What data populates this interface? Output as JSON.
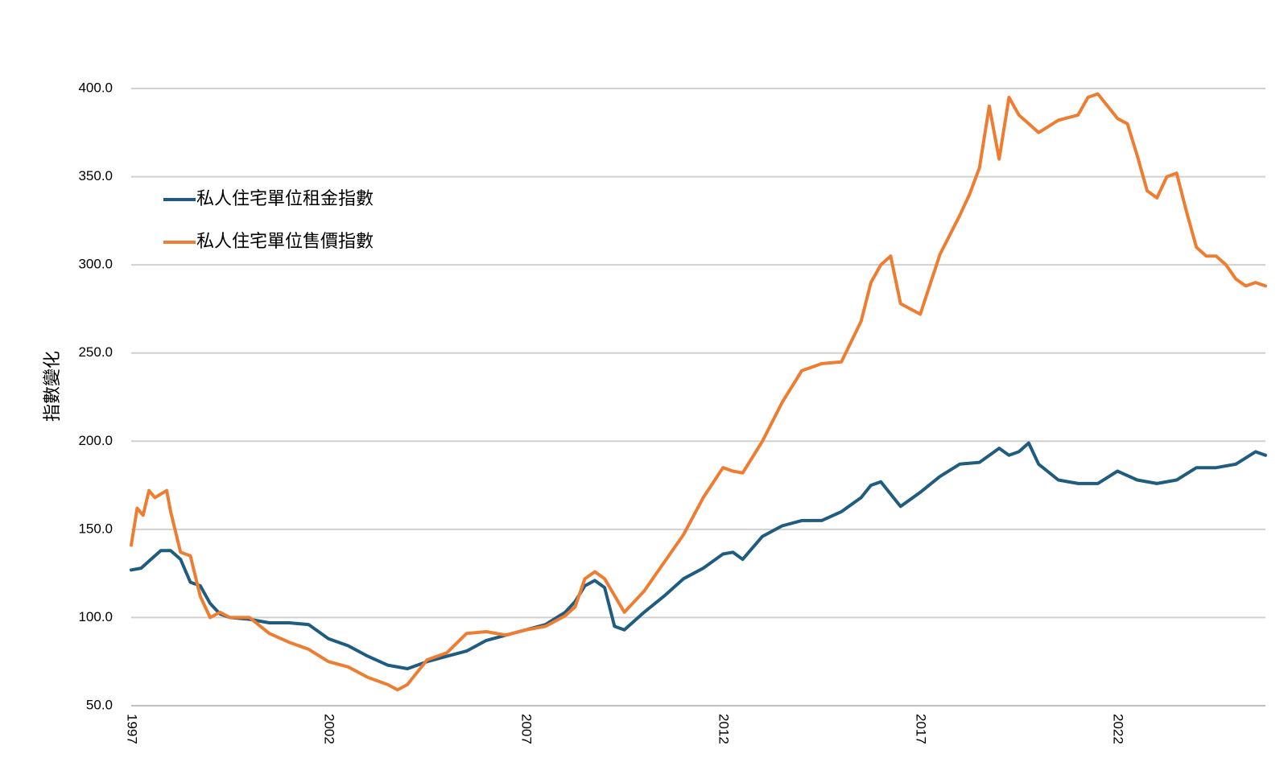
{
  "chart_data": {
    "type": "line",
    "title": "",
    "xlabel": "",
    "ylabel": "指數變化",
    "ylim": [
      50,
      400
    ],
    "yticks": [
      "400.0",
      "350.0",
      "300.0",
      "250.0",
      "200.0",
      "150.0",
      "100.0",
      "50.0"
    ],
    "xlim": [
      1997,
      2025.75
    ],
    "xticks": [
      "1997",
      "2002",
      "2007",
      "2012",
      "2017",
      "2022"
    ],
    "grid": true,
    "legend_position": "top-left",
    "series": [
      {
        "name": "私人住宅單位租金指數",
        "color": "#1f5c7f",
        "x": [
          1997.0,
          1997.25,
          1997.5,
          1997.75,
          1998.0,
          1998.25,
          1998.5,
          1998.75,
          1999.0,
          1999.25,
          1999.5,
          2000.0,
          2000.5,
          2001.0,
          2001.5,
          2002.0,
          2002.5,
          2003.0,
          2003.5,
          2004.0,
          2004.5,
          2005.0,
          2005.5,
          2006.0,
          2006.5,
          2007.0,
          2007.5,
          2008.0,
          2008.25,
          2008.5,
          2008.75,
          2009.0,
          2009.25,
          2009.5,
          2010.0,
          2010.5,
          2011.0,
          2011.5,
          2012.0,
          2012.25,
          2012.5,
          2013.0,
          2013.5,
          2014.0,
          2014.5,
          2015.0,
          2015.5,
          2015.75,
          2016.0,
          2016.25,
          2016.5,
          2017.0,
          2017.5,
          2018.0,
          2018.5,
          2019.0,
          2019.25,
          2019.5,
          2019.75,
          2020.0,
          2020.5,
          2021.0,
          2021.5,
          2022.0,
          2022.5,
          2023.0,
          2023.5,
          2024.0,
          2024.5,
          2025.0,
          2025.5,
          2025.75
        ],
        "values": [
          127,
          128,
          133,
          138,
          138,
          133,
          120,
          118,
          108,
          102,
          100,
          99,
          97,
          97,
          96,
          88,
          84,
          78,
          73,
          71,
          75,
          78,
          81,
          87,
          90,
          93,
          96,
          103,
          109,
          118,
          121,
          117,
          95,
          93,
          103,
          112,
          122,
          128,
          136,
          137,
          133,
          146,
          152,
          155,
          155,
          160,
          168,
          175,
          177,
          170,
          163,
          171,
          180,
          187,
          188,
          196,
          192,
          194,
          199,
          187,
          178,
          176,
          176,
          183,
          178,
          176,
          178,
          185,
          185,
          187,
          194,
          192
        ]
      },
      {
        "name": "私人住宅單位售價指數",
        "color": "#ee7d31",
        "x": [
          1997.0,
          1997.15,
          1997.3,
          1997.45,
          1997.6,
          1997.75,
          1997.9,
          1998.0,
          1998.25,
          1998.5,
          1998.75,
          1999.0,
          1999.25,
          1999.5,
          2000.0,
          2000.5,
          2001.0,
          2001.5,
          2002.0,
          2002.5,
          2003.0,
          2003.5,
          2003.75,
          2004.0,
          2004.5,
          2005.0,
          2005.5,
          2006.0,
          2006.5,
          2007.0,
          2007.5,
          2008.0,
          2008.25,
          2008.5,
          2008.75,
          2009.0,
          2009.5,
          2010.0,
          2010.5,
          2011.0,
          2011.5,
          2012.0,
          2012.25,
          2012.5,
          2013.0,
          2013.5,
          2014.0,
          2014.5,
          2015.0,
          2015.5,
          2015.75,
          2016.0,
          2016.25,
          2016.5,
          2017.0,
          2017.5,
          2018.0,
          2018.25,
          2018.5,
          2018.75,
          2019.0,
          2019.25,
          2019.5,
          2019.75,
          2020.0,
          2020.5,
          2021.0,
          2021.25,
          2021.5,
          2021.75,
          2022.0,
          2022.25,
          2022.5,
          2022.75,
          2023.0,
          2023.25,
          2023.5,
          2023.75,
          2024.0,
          2024.25,
          2024.5,
          2024.75,
          2025.0,
          2025.25,
          2025.5,
          2025.75
        ],
        "values": [
          141,
          162,
          158,
          172,
          168,
          170,
          172,
          160,
          137,
          135,
          112,
          100,
          103,
          100,
          100,
          91,
          86,
          82,
          75,
          72,
          66,
          62,
          59,
          62,
          76,
          80,
          91,
          92,
          90,
          93,
          95,
          101,
          106,
          122,
          126,
          122,
          103,
          115,
          131,
          147,
          168,
          185,
          183,
          182,
          200,
          222,
          240,
          244,
          245,
          268,
          290,
          300,
          305,
          278,
          272,
          306,
          328,
          340,
          355,
          390,
          360,
          395,
          385,
          380,
          375,
          382,
          385,
          395,
          397,
          390,
          383,
          380,
          362,
          342,
          338,
          350,
          352,
          330,
          310,
          305,
          305,
          300,
          292,
          288,
          290,
          288
        ]
      }
    ]
  }
}
